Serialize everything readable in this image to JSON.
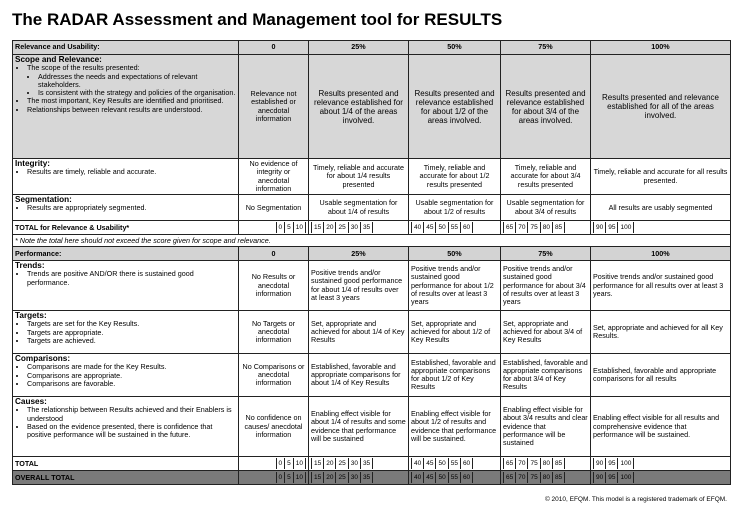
{
  "title": "The RADAR Assessment and Management tool for RESULTS",
  "scales": [
    "0",
    "25%",
    "50%",
    "75%",
    "100%"
  ],
  "relevance": {
    "header": "Relevance and  Usability:",
    "scope": {
      "heading": "Scope and Relevance:",
      "bullet1": "The scope of the results presented:",
      "sub1": "Addresses the needs and expectations of relevant stakeholders.",
      "sub2": "Is consistent with the strategy and policies of the organisation.",
      "bullet2": "The most important, Key Results are identified and prioritised.",
      "bullet3": "Relationships between relevant results are understood.",
      "levels": [
        "Relevance not established or anecdotal information",
        "Results presented and relevance established for about 1/4 of the areas involved.",
        "Results presented and relevance established for about 1/2 of the areas involved.",
        "Results presented and relevance established for about 3/4 of the areas involved.",
        "Results presented and relevance established for all of the areas involved."
      ]
    },
    "integrity": {
      "heading": "Integrity:",
      "bullet1": "Results are timely, reliable and accurate.",
      "levels": [
        "No evidence of integrity or anecdotal information",
        "Timely, reliable and accurate for about 1/4 results presented",
        "Timely, reliable and accurate for about 1/2 results presented",
        "Timely, reliable and accurate for about 3/4 results presented",
        "Timely, reliable and accurate for all results presented."
      ]
    },
    "segmentation": {
      "heading": "Segmentation:",
      "bullet1": "Results are appropriately segmented.",
      "levels": [
        "No Segmentation",
        "Usable segmentation for about 1/4 of results",
        "Usable segmentation for about 1/2 of results",
        "Usable segmentation for about 3/4 of results",
        "All results are usably segmented"
      ]
    },
    "total_label": "TOTAL for Relevance & Usability*",
    "note": "* Note the total here should not exceed the score given for scope and relevance."
  },
  "performance": {
    "header": "Performance:",
    "trends": {
      "heading": "Trends:",
      "bullet1": "Trends are positive AND/OR there is sustained good performance.",
      "levels": [
        "No Results or anecdotal information",
        "Positive trends and/or sustained good performance for about 1/4 of results over at least 3 years",
        "Positive trends and/or sustained good performance for about 1/2 of results over at least 3 years",
        "Positive trends and/or sustained good performance for about 3/4 of results over at least 3 years",
        "Positive trends and/or sustained good performance for all results over at least 3 years."
      ]
    },
    "targets": {
      "heading": "Targets:",
      "bullet1": "Targets are set for the Key Results.",
      "bullet2": "Targets are appropriate.",
      "bullet3": "Targets are achieved.",
      "levels": [
        "No Targets or anecdotal information",
        "Set,  appropriate and achieved for about 1/4 of Key Results",
        "Set,  appropriate and achieved for about 1/2 of Key Results",
        "Set,  appropriate and achieved for about 3/4 of Key Results",
        "Set, appropriate and achieved for all Key Results."
      ]
    },
    "comparisons": {
      "heading": "Comparisons:",
      "bullet1": "Comparisons are made for the Key Results.",
      "bullet2": "Comparisons are appropriate.",
      "bullet3": "Comparisons are favorable.",
      "levels": [
        "No Comparisons or anecdotal information",
        "Established, favorable and appropriate comparisons for about 1/4 of Key Results",
        "Established, favorable and appropriate comparisons for about 1/2 of Key Results",
        "Established, favorable and appropriate comparisons for about 3/4  of Key Results",
        "Established, favorable and appropriate comparisons for all results"
      ]
    },
    "causes": {
      "heading": "Causes:",
      "bullet1": "The relationship between Results  achieved and their  Enablers is understood",
      "bullet2": "Based on the evidence presented, there is confidence that positive performance will be sustained in the future.",
      "levels": [
        "No confidence on causes/ anecdotal information",
        "Enabling effect visible for about 1/4 of results and some evidence that performance will be sustained",
        "Enabling effect visible for about 1/2 of results and evidence that performance will be sustained.",
        "Enabling effect visible for about 3/4 results and clear evidence that performance will be sustained",
        "Enabling effect visible for all results and comprehensive evidence that performance will be sustained."
      ]
    },
    "total_label": "TOTAL"
  },
  "overall_label": "OVERALL TOTAL",
  "score_groups": [
    [
      "0",
      "5",
      "10"
    ],
    [
      "15",
      "20",
      "25",
      "30",
      "35"
    ],
    [
      "40",
      "45",
      "50",
      "55",
      "60"
    ],
    [
      "65",
      "70",
      "75",
      "80",
      "85"
    ],
    [
      "90",
      "95",
      "100"
    ]
  ],
  "copyright": "© 2010, EFQM. This model is a registered trademark of EFQM."
}
